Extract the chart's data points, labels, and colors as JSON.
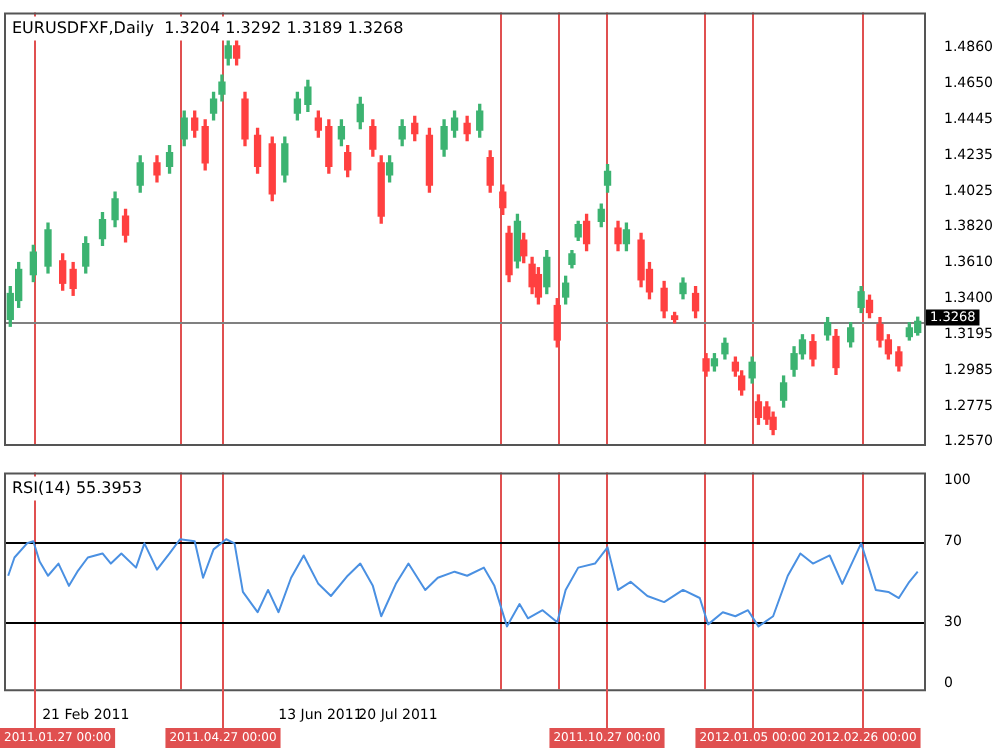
{
  "chart_data": [
    {
      "type": "candlestick",
      "title": "EURUSDFXF,Daily  1.3204 1.3292 1.3189 1.3268",
      "x": [
        "2011-01-16",
        "2011-01-20",
        "2011-01-27",
        "2011-02-03",
        "2011-02-10",
        "2011-02-15",
        "2011-02-21",
        "2011-03-01",
        "2011-03-07",
        "2011-03-12",
        "2011-03-19",
        "2011-03-27",
        "2011-04-02",
        "2011-04-09",
        "2011-04-14",
        "2011-04-19",
        "2011-04-23",
        "2011-04-27",
        "2011-04-30",
        "2011-05-04",
        "2011-05-08",
        "2011-05-14",
        "2011-05-21",
        "2011-05-27",
        "2011-06-02",
        "2011-06-07",
        "2011-06-12",
        "2011-06-17",
        "2011-06-23",
        "2011-06-26",
        "2011-07-02",
        "2011-07-08",
        "2011-07-12",
        "2011-07-16",
        "2011-07-22",
        "2011-07-28",
        "2011-08-04",
        "2011-08-11",
        "2011-08-16",
        "2011-08-22",
        "2011-08-28",
        "2011-09-02",
        "2011-09-08",
        "2011-09-11",
        "2011-09-15",
        "2011-09-18",
        "2011-09-22",
        "2011-09-25",
        "2011-09-29",
        "2011-10-04",
        "2011-10-08",
        "2011-10-11",
        "2011-10-14",
        "2011-10-18",
        "2011-10-25",
        "2011-10-28",
        "2011-11-02",
        "2011-11-06",
        "2011-11-13",
        "2011-11-17",
        "2011-11-24",
        "2011-11-29",
        "2011-12-03",
        "2011-12-09",
        "2011-12-14",
        "2011-12-18",
        "2011-12-23",
        "2011-12-28",
        "2011-12-31",
        "2012-01-05",
        "2012-01-08",
        "2012-01-12",
        "2012-01-15",
        "2012-01-20",
        "2012-01-25",
        "2012-01-29",
        "2012-02-03",
        "2012-02-10",
        "2012-02-14",
        "2012-02-21",
        "2012-02-26",
        "2012-03-01",
        "2012-03-06",
        "2012-03-10",
        "2012-03-15",
        "2012-03-20",
        "2012-03-24"
      ],
      "ohlc": [
        [
          1.328,
          1.347,
          1.324,
          1.343
        ],
        [
          1.339,
          1.361,
          1.335,
          1.357
        ],
        [
          1.354,
          1.371,
          1.35,
          1.367
        ],
        [
          1.359,
          1.384,
          1.355,
          1.38
        ],
        [
          1.362,
          1.366,
          1.345,
          1.349
        ],
        [
          1.357,
          1.361,
          1.342,
          1.346
        ],
        [
          1.359,
          1.376,
          1.355,
          1.372
        ],
        [
          1.375,
          1.39,
          1.371,
          1.386
        ],
        [
          1.386,
          1.402,
          1.382,
          1.398
        ],
        [
          1.388,
          1.392,
          1.373,
          1.377
        ],
        [
          1.406,
          1.423,
          1.402,
          1.419
        ],
        [
          1.419,
          1.423,
          1.408,
          1.412
        ],
        [
          1.417,
          1.429,
          1.413,
          1.425
        ],
        [
          1.433,
          1.449,
          1.429,
          1.445
        ],
        [
          1.445,
          1.449,
          1.434,
          1.438
        ],
        [
          1.44,
          1.444,
          1.415,
          1.419
        ],
        [
          1.448,
          1.46,
          1.444,
          1.456
        ],
        [
          1.459,
          1.47,
          1.455,
          1.466
        ],
        [
          1.48,
          1.491,
          1.476,
          1.487
        ],
        [
          1.487,
          1.491,
          1.476,
          1.48
        ],
        [
          1.456,
          1.46,
          1.429,
          1.433
        ],
        [
          1.435,
          1.439,
          1.413,
          1.417
        ],
        [
          1.43,
          1.434,
          1.397,
          1.401
        ],
        [
          1.412,
          1.434,
          1.408,
          1.43
        ],
        [
          1.448,
          1.46,
          1.444,
          1.456
        ],
        [
          1.453,
          1.467,
          1.449,
          1.463
        ],
        [
          1.445,
          1.449,
          1.434,
          1.438
        ],
        [
          1.44,
          1.444,
          1.413,
          1.417
        ],
        [
          1.433,
          1.444,
          1.429,
          1.44
        ],
        [
          1.425,
          1.429,
          1.411,
          1.415
        ],
        [
          1.443,
          1.457,
          1.439,
          1.453
        ],
        [
          1.44,
          1.444,
          1.423,
          1.427
        ],
        [
          1.419,
          1.423,
          1.384,
          1.388
        ],
        [
          1.412,
          1.423,
          1.408,
          1.419
        ],
        [
          1.433,
          1.444,
          1.429,
          1.44
        ],
        [
          1.442,
          1.446,
          1.432,
          1.436
        ],
        [
          1.435,
          1.439,
          1.402,
          1.406
        ],
        [
          1.427,
          1.444,
          1.423,
          1.44
        ],
        [
          1.438,
          1.449,
          1.434,
          1.445
        ],
        [
          1.442,
          1.446,
          1.432,
          1.436
        ],
        [
          1.438,
          1.453,
          1.434,
          1.449
        ],
        [
          1.422,
          1.426,
          1.402,
          1.406
        ],
        [
          1.402,
          1.406,
          1.389,
          1.393
        ],
        [
          1.378,
          1.382,
          1.35,
          1.354
        ],
        [
          1.362,
          1.389,
          1.358,
          1.385
        ],
        [
          1.374,
          1.378,
          1.361,
          1.365
        ],
        [
          1.36,
          1.364,
          1.343,
          1.347
        ],
        [
          1.354,
          1.358,
          1.337,
          1.341
        ],
        [
          1.347,
          1.368,
          1.343,
          1.364
        ],
        [
          1.336,
          1.34,
          1.312,
          1.316
        ],
        [
          1.341,
          1.353,
          1.337,
          1.349
        ],
        [
          1.36,
          1.368,
          1.358,
          1.366
        ],
        [
          1.376,
          1.385,
          1.374,
          1.383
        ],
        [
          1.385,
          1.389,
          1.368,
          1.372
        ],
        [
          1.385,
          1.395,
          1.382,
          1.392
        ],
        [
          1.406,
          1.418,
          1.402,
          1.414
        ],
        [
          1.381,
          1.385,
          1.368,
          1.372
        ],
        [
          1.372,
          1.384,
          1.368,
          1.38
        ],
        [
          1.374,
          1.378,
          1.347,
          1.351
        ],
        [
          1.357,
          1.361,
          1.34,
          1.344
        ],
        [
          1.346,
          1.35,
          1.329,
          1.333
        ],
        [
          1.33,
          1.332,
          1.326,
          1.328
        ],
        [
          1.343,
          1.352,
          1.34,
          1.349
        ],
        [
          1.343,
          1.347,
          1.329,
          1.333
        ],
        [
          1.305,
          1.308,
          1.295,
          1.298
        ],
        [
          1.301,
          1.308,
          1.298,
          1.305
        ],
        [
          1.308,
          1.317,
          1.305,
          1.314
        ],
        [
          1.303,
          1.306,
          1.295,
          1.298
        ],
        [
          1.295,
          1.298,
          1.284,
          1.287
        ],
        [
          1.294,
          1.306,
          1.291,
          1.303
        ],
        [
          1.28,
          1.284,
          1.267,
          1.271
        ],
        [
          1.277,
          1.28,
          1.267,
          1.27
        ],
        [
          1.271,
          1.274,
          1.261,
          1.264
        ],
        [
          1.281,
          1.295,
          1.277,
          1.291
        ],
        [
          1.299,
          1.312,
          1.295,
          1.308
        ],
        [
          1.308,
          1.319,
          1.305,
          1.316
        ],
        [
          1.315,
          1.319,
          1.301,
          1.305
        ],
        [
          1.319,
          1.329,
          1.316,
          1.326
        ],
        [
          1.318,
          1.322,
          1.296,
          1.3
        ],
        [
          1.315,
          1.326,
          1.312,
          1.323
        ],
        [
          1.335,
          1.347,
          1.332,
          1.344
        ],
        [
          1.339,
          1.342,
          1.329,
          1.332
        ],
        [
          1.325,
          1.329,
          1.312,
          1.316
        ],
        [
          1.316,
          1.319,
          1.305,
          1.308
        ],
        [
          1.309,
          1.312,
          1.298,
          1.301
        ],
        [
          1.318,
          1.326,
          1.316,
          1.323
        ],
        [
          1.3204,
          1.3292,
          1.3189,
          1.3268
        ]
      ],
      "colors": [
        "#3cb371",
        "#3cb371",
        "#3cb371",
        "#3cb371",
        "#ff4040",
        "#ff4040",
        "#3cb371",
        "#3cb371",
        "#3cb371",
        "#ff4040",
        "#3cb371",
        "#ff4040",
        "#3cb371",
        "#3cb371",
        "#ff4040",
        "#ff4040",
        "#3cb371",
        "#3cb371",
        "#3cb371",
        "#ff4040",
        "#ff4040",
        "#ff4040",
        "#ff4040",
        "#3cb371",
        "#3cb371",
        "#3cb371",
        "#ff4040",
        "#ff4040",
        "#3cb371",
        "#ff4040",
        "#3cb371",
        "#ff4040",
        "#ff4040",
        "#3cb371",
        "#3cb371",
        "#ff4040",
        "#ff4040",
        "#3cb371",
        "#3cb371",
        "#ff4040",
        "#3cb371",
        "#ff4040",
        "#ff4040",
        "#ff4040",
        "#3cb371",
        "#ff4040",
        "#ff4040",
        "#ff4040",
        "#3cb371",
        "#ff4040",
        "#3cb371",
        "#3cb371",
        "#3cb371",
        "#ff4040",
        "#3cb371",
        "#3cb371",
        "#ff4040",
        "#3cb371",
        "#ff4040",
        "#ff4040",
        "#ff4040",
        "#ff4040",
        "#3cb371",
        "#ff4040",
        "#ff4040",
        "#3cb371",
        "#3cb371",
        "#ff4040",
        "#ff4040",
        "#3cb371",
        "#ff4040",
        "#ff4040",
        "#ff4040",
        "#3cb371",
        "#3cb371",
        "#3cb371",
        "#ff4040",
        "#3cb371",
        "#ff4040",
        "#3cb371",
        "#3cb371",
        "#ff4040",
        "#ff4040",
        "#ff4040",
        "#ff4040",
        "#3cb371",
        "#3cb371"
      ],
      "xlim": [
        "2011-01-13",
        "2012-03-27"
      ],
      "ylim": [
        1.2555,
        1.5065
      ],
      "yticks": [
        {
          "value": 1.257,
          "label": "1.2570"
        },
        {
          "value": 1.2775,
          "label": "1.2775"
        },
        {
          "value": 1.2985,
          "label": "1.2985"
        },
        {
          "value": 1.3195,
          "label": "1.3195"
        },
        {
          "value": 1.34,
          "label": "1.3400"
        },
        {
          "value": 1.361,
          "label": "1.3610"
        },
        {
          "value": 1.382,
          "label": "1.3820"
        },
        {
          "value": 1.4025,
          "label": "1.4025"
        },
        {
          "value": 1.4235,
          "label": "1.4235"
        },
        {
          "value": 1.4445,
          "label": "1.4445"
        },
        {
          "value": 1.465,
          "label": "1.4650"
        },
        {
          "value": 1.486,
          "label": "1.4860"
        }
      ],
      "tick_labels": "y",
      "ref_lines": [
        {
          "axis": "x",
          "value": "2011-01-27",
          "color": "#e05050"
        },
        {
          "axis": "x",
          "value": "2011-04-07",
          "color": "#e05050"
        },
        {
          "axis": "x",
          "value": "2011-04-27",
          "color": "#e05050"
        },
        {
          "axis": "x",
          "value": "2011-09-07",
          "color": "#e05050"
        },
        {
          "axis": "x",
          "value": "2011-10-04",
          "color": "#e05050"
        },
        {
          "axis": "x",
          "value": "2011-10-27",
          "color": "#e05050"
        },
        {
          "axis": "x",
          "value": "2011-12-13",
          "color": "#e05050"
        },
        {
          "axis": "x",
          "value": "2012-01-05",
          "color": "#e05050"
        },
        {
          "axis": "x",
          "value": "2012-02-26",
          "color": "#e05050"
        },
        {
          "axis": "y",
          "value": 1.3268,
          "label": "1.3268",
          "color": "#808080"
        }
      ]
    },
    {
      "type": "line",
      "title": "RSI(14) 55.3953",
      "marker": "none",
      "x": [
        "2011-01-15",
        "2011-01-18",
        "2011-01-24",
        "2011-01-27",
        "2011-01-30",
        "2011-02-03",
        "2011-02-08",
        "2011-02-13",
        "2011-02-17",
        "2011-02-22",
        "2011-03-01",
        "2011-03-05",
        "2011-03-10",
        "2011-03-17",
        "2011-03-21",
        "2011-03-27",
        "2011-04-02",
        "2011-04-07",
        "2011-04-14",
        "2011-04-18",
        "2011-04-23",
        "2011-04-29",
        "2011-05-03",
        "2011-05-07",
        "2011-05-14",
        "2011-05-19",
        "2011-05-24",
        "2011-05-30",
        "2011-06-05",
        "2011-06-12",
        "2011-06-18",
        "2011-06-26",
        "2011-07-02",
        "2011-07-08",
        "2011-07-12",
        "2011-07-19",
        "2011-07-25",
        "2011-08-02",
        "2011-08-08",
        "2011-08-16",
        "2011-08-22",
        "2011-08-30",
        "2011-09-04",
        "2011-09-10",
        "2011-09-16",
        "2011-09-20",
        "2011-09-27",
        "2011-10-04",
        "2011-10-08",
        "2011-10-14",
        "2011-10-22",
        "2011-10-28",
        "2011-11-02",
        "2011-11-08",
        "2011-11-16",
        "2011-11-24",
        "2011-12-03",
        "2011-12-11",
        "2011-12-15",
        "2011-12-22",
        "2011-12-28",
        "2012-01-03",
        "2012-01-08",
        "2012-01-15",
        "2012-01-22",
        "2012-01-28",
        "2012-02-03",
        "2012-02-11",
        "2012-02-17",
        "2012-02-26",
        "2012-03-04",
        "2012-03-10",
        "2012-03-15",
        "2012-03-20",
        "2012-03-24"
      ],
      "series": [
        {
          "color": "#4a90e2",
          "values": [
            53,
            62,
            69,
            70,
            60,
            53,
            59,
            48,
            55,
            62,
            64,
            59,
            64,
            57,
            69,
            56,
            64,
            71,
            70,
            52,
            66,
            71,
            69,
            45,
            35,
            46,
            35,
            52,
            63,
            49,
            43,
            53,
            59,
            48,
            33,
            49,
            59,
            46,
            52,
            55,
            53,
            57,
            48,
            28,
            39,
            32,
            36,
            30,
            46,
            57,
            59,
            67,
            46,
            50,
            43,
            40,
            46,
            42,
            29,
            35,
            33,
            36,
            28,
            33,
            53,
            64,
            59,
            63,
            49,
            69,
            46,
            45,
            42,
            50,
            55
          ]
        }
      ],
      "xlim": [
        "2011-01-13",
        "2012-03-27"
      ],
      "xticks": [
        {
          "value": "2011-02-21",
          "label": "21 Feb 2011"
        },
        {
          "value": "2011-06-13",
          "label": "13 Jun 2011"
        },
        {
          "value": "2011-07-20",
          "label": "20 Jul 2011"
        }
      ],
      "ylim": [
        -3,
        104
      ],
      "yticks": [
        0,
        30,
        70,
        100
      ],
      "ref_lines": [
        {
          "axis": "x",
          "value": "2011-01-27",
          "label": "2011.01.27 00:00",
          "color": "#e05050"
        },
        {
          "axis": "x",
          "value": "2011-04-07",
          "color": "#e05050"
        },
        {
          "axis": "x",
          "value": "2011-04-27",
          "label": "2011.04.27 00:00",
          "color": "#e05050"
        },
        {
          "axis": "x",
          "value": "2011-09-07",
          "color": "#e05050"
        },
        {
          "axis": "x",
          "value": "2011-10-04",
          "color": "#e05050"
        },
        {
          "axis": "x",
          "value": "2011-10-27",
          "label": "2011.10.27 00:00",
          "color": "#e05050"
        },
        {
          "axis": "x",
          "value": "2011-12-13",
          "color": "#e05050"
        },
        {
          "axis": "x",
          "value": "2012-01-05",
          "label": "2012.01.05 00:00",
          "color": "#e05050"
        },
        {
          "axis": "x",
          "value": "2012-02-26",
          "label": "2012.02.26 00:00",
          "color": "#e05050"
        },
        {
          "axis": "y",
          "value": 30,
          "color": "#000000"
        },
        {
          "axis": "y",
          "value": 70,
          "color": "#000000"
        }
      ]
    }
  ]
}
